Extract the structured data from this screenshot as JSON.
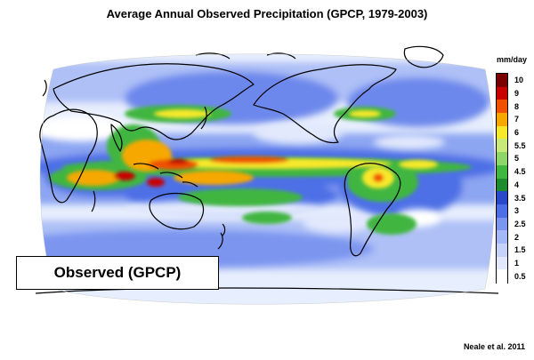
{
  "title": "Average Annual Observed Precipitation (GPCP, 1979-2003)",
  "map_label": "Observed (GPCP)",
  "credit": "Neale et al. 2011",
  "legend": {
    "title": "mm/day",
    "entries": [
      {
        "label": "10",
        "color": "#7a0000"
      },
      {
        "label": "9",
        "color": "#c80000"
      },
      {
        "label": "8",
        "color": "#f05000"
      },
      {
        "label": "7",
        "color": "#f7a800"
      },
      {
        "label": "6",
        "color": "#f7e82a"
      },
      {
        "label": "5.5",
        "color": "#c8ea78"
      },
      {
        "label": "5",
        "color": "#8ed66a"
      },
      {
        "label": "4.5",
        "color": "#3fb63f"
      },
      {
        "label": "4",
        "color": "#1e8c2e"
      },
      {
        "label": "3.5",
        "color": "#2a49c8"
      },
      {
        "label": "3",
        "color": "#4d6fe6"
      },
      {
        "label": "2.5",
        "color": "#7b96f0"
      },
      {
        "label": "2",
        "color": "#a3b8f6"
      },
      {
        "label": "1.5",
        "color": "#c5d3fa"
      },
      {
        "label": "1",
        "color": "#e2e9fd"
      },
      {
        "label": "0.5",
        "color": "#ffffff"
      }
    ]
  }
}
